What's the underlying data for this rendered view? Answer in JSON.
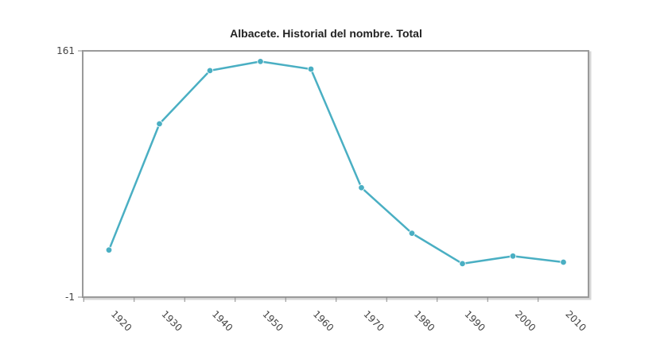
{
  "chart_data": {
    "type": "line",
    "title": "Albacete. Historial del nombre. Total",
    "xlabel": "",
    "ylabel": "",
    "categories": [
      "1920",
      "1930",
      "1940",
      "1950",
      "1960",
      "1970",
      "1980",
      "1990",
      "2000",
      "2010"
    ],
    "series": [
      {
        "values": [
          30,
          113,
          148,
          154,
          149,
          71,
          41,
          21,
          26,
          22
        ]
      }
    ],
    "ylim": [
      -1,
      161
    ],
    "y_ticks": [
      "161",
      "-1"
    ],
    "grid": false,
    "legend": "none",
    "colors": {
      "line": "#4aafc3",
      "marker": "#4aafc3",
      "frame": "#9a9a9a"
    }
  }
}
